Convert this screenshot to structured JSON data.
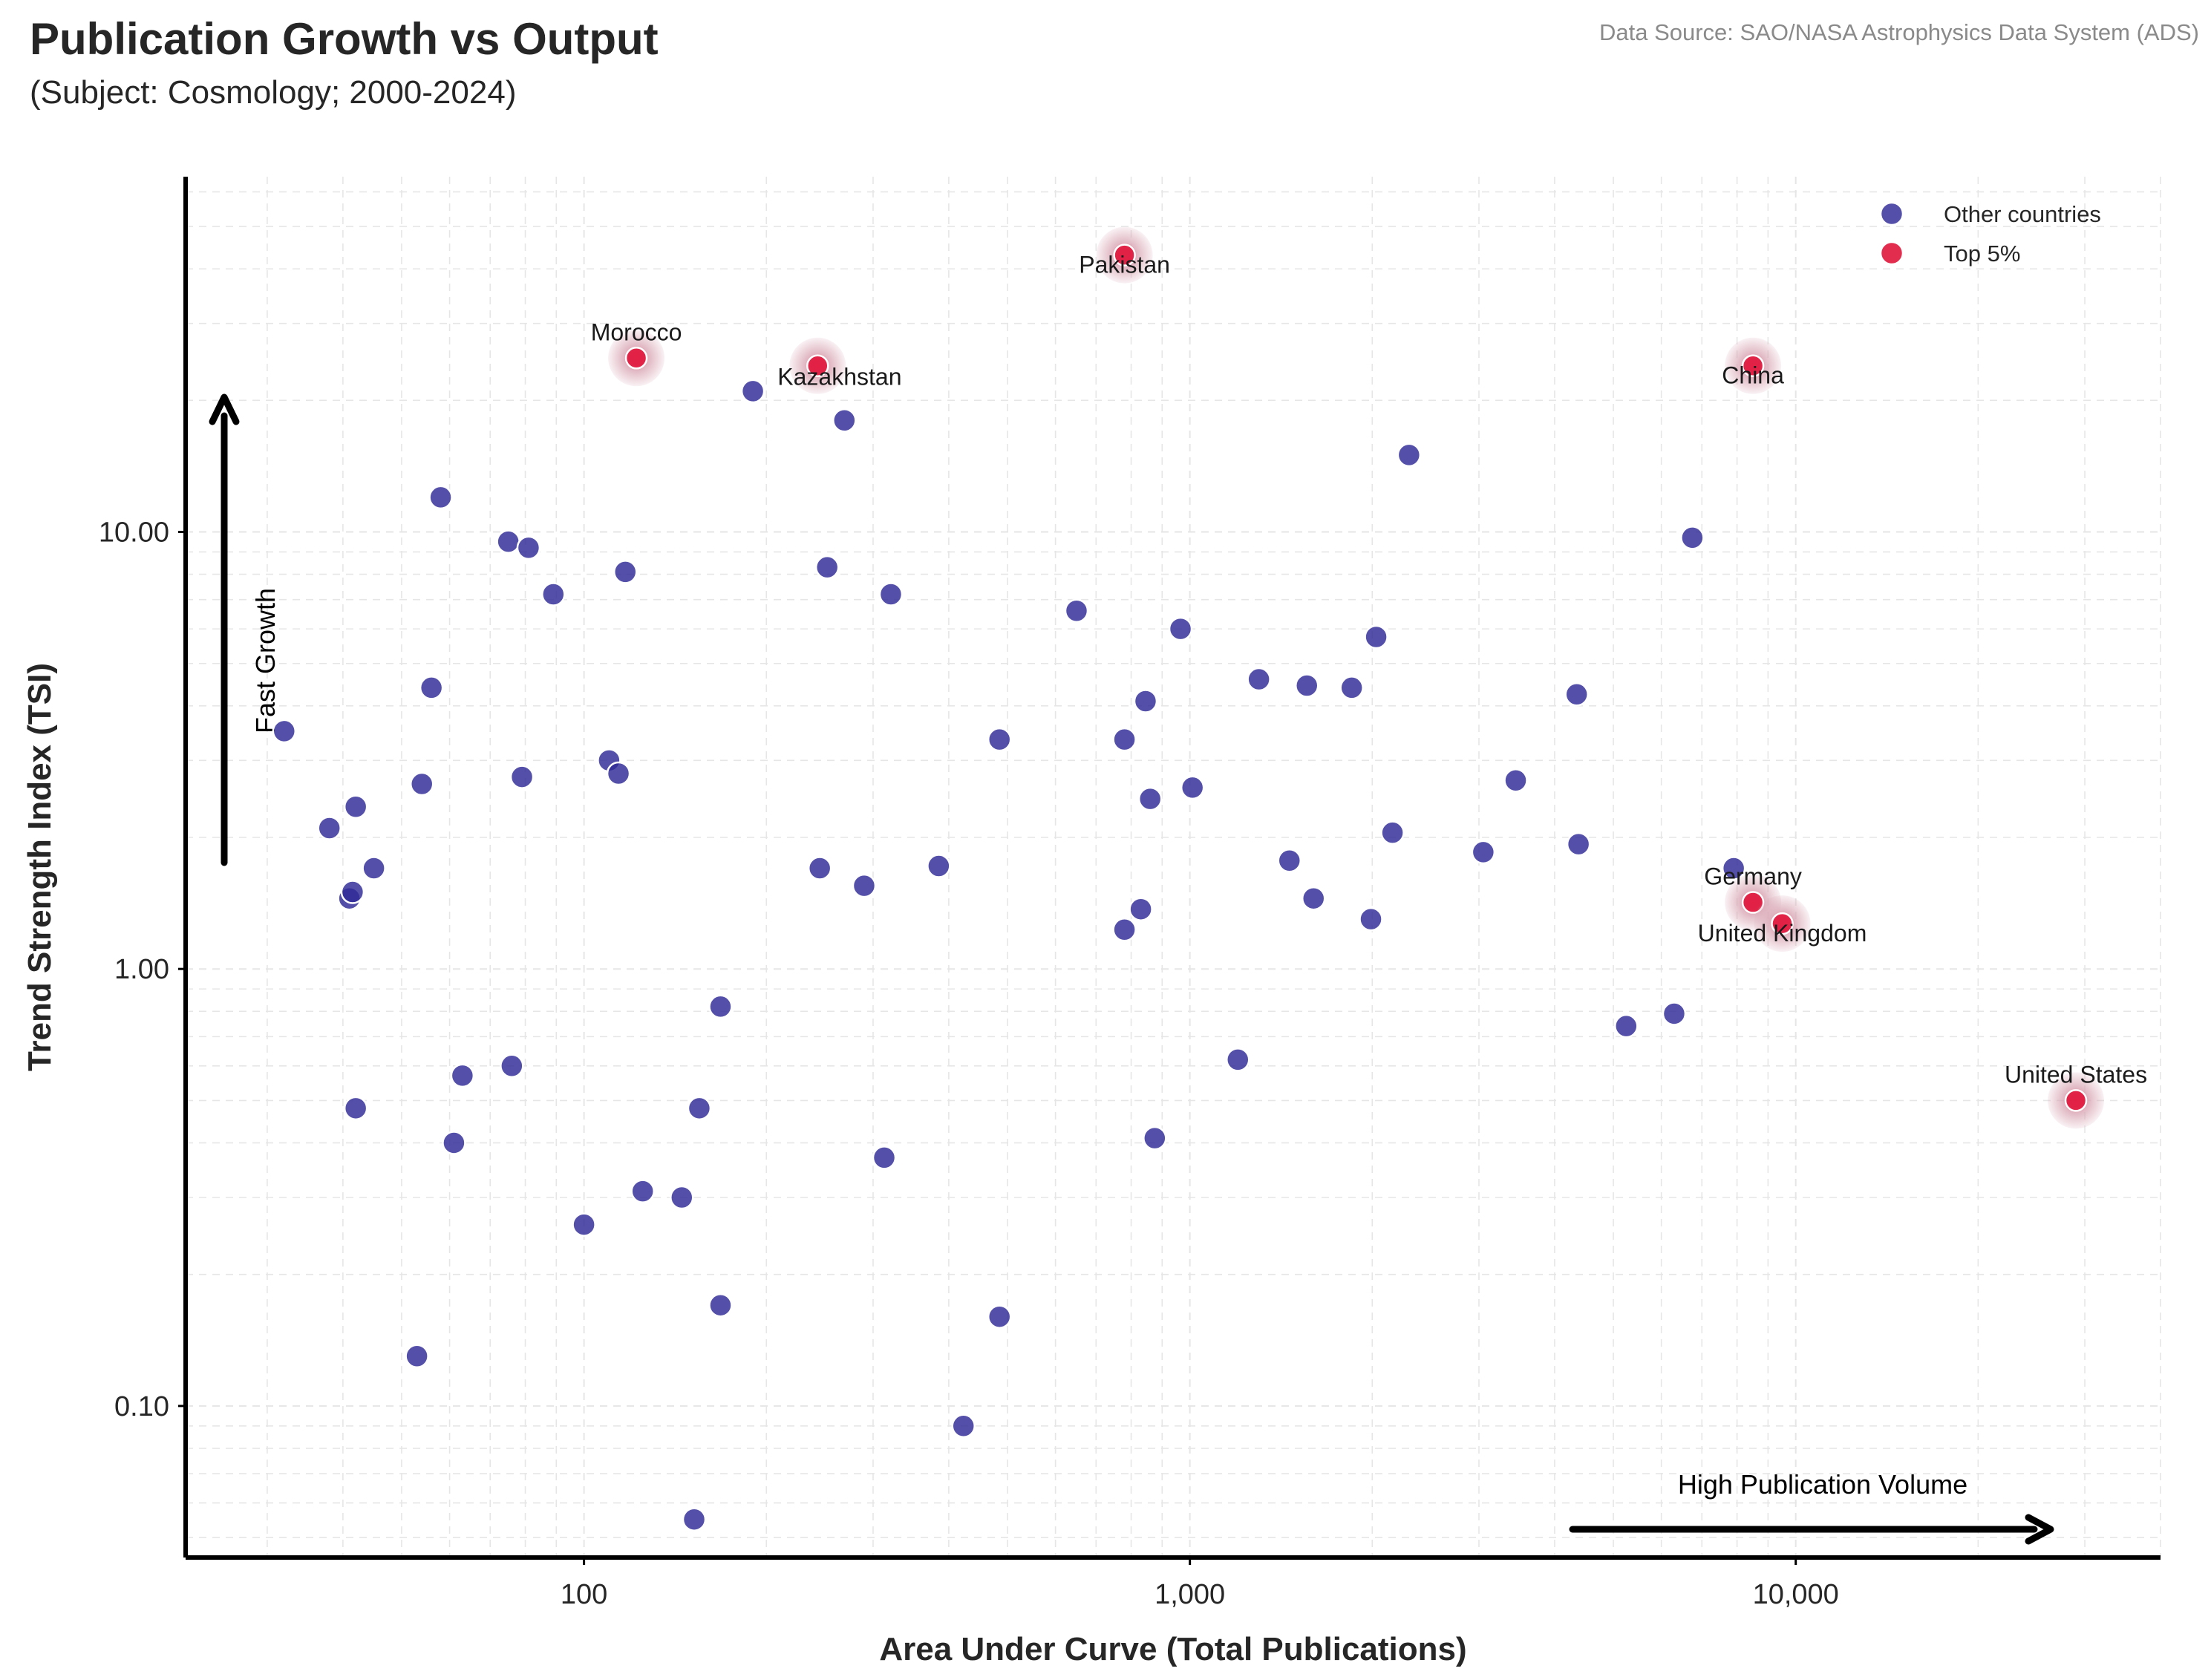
{
  "header": {
    "title": "Publication Growth vs Output",
    "subtitle": "(Subject: Cosmology; 2000-2024)",
    "source": "Data Source: SAO/NASA Astrophysics Data System (ADS)"
  },
  "chart_data": {
    "type": "scatter",
    "xlabel": "Area Under Curve (Total Publications)",
    "ylabel": "Trend Strength Index (TSI)",
    "xscale": "log",
    "yscale": "log",
    "xlim": [
      22,
      40000
    ],
    "ylim": [
      0.045,
      65
    ],
    "x_ticks": [
      100,
      1000,
      10000
    ],
    "x_tick_labels": [
      "100",
      "1,000",
      "10,000"
    ],
    "y_ticks": [
      0.1,
      1,
      10
    ],
    "y_tick_labels": [
      "0.10",
      "1.00",
      "10.00"
    ],
    "grid": true,
    "legend_position": "top-right",
    "colors": {
      "other": "#2e2a96",
      "top": "#e0163c",
      "halo": "#d9a7b5",
      "axis": "#000000"
    },
    "annotations": {
      "fast_growth": "Fast Growth",
      "high_volume": "High Publication Volume"
    },
    "series": [
      {
        "name": "Other countries",
        "color": "#2e2a96",
        "points": [
          [
            32,
            3.5
          ],
          [
            38,
            2.1
          ],
          [
            41,
            1.45
          ],
          [
            41.5,
            1.5
          ],
          [
            42,
            2.35
          ],
          [
            42,
            0.48
          ],
          [
            45,
            1.7
          ],
          [
            53,
            0.13
          ],
          [
            54,
            2.65
          ],
          [
            56,
            4.4
          ],
          [
            58,
            12.0
          ],
          [
            61,
            0.4
          ],
          [
            63,
            0.57
          ],
          [
            75,
            9.5
          ],
          [
            76,
            0.6
          ],
          [
            79,
            2.75
          ],
          [
            81,
            9.2
          ],
          [
            89,
            7.2
          ],
          [
            100,
            0.26
          ],
          [
            110,
            3.0
          ],
          [
            114,
            2.8
          ],
          [
            117,
            8.1
          ],
          [
            125,
            0.31
          ],
          [
            145,
            0.3
          ],
          [
            152,
            0.055
          ],
          [
            155,
            0.48
          ],
          [
            168,
            0.82
          ],
          [
            168,
            0.17
          ],
          [
            190,
            21.0
          ],
          [
            245,
            1.7
          ],
          [
            252,
            8.3
          ],
          [
            269,
            18.0
          ],
          [
            290,
            1.55
          ],
          [
            313,
            0.37
          ],
          [
            321,
            7.2
          ],
          [
            385,
            1.72
          ],
          [
            423,
            0.09
          ],
          [
            485,
            0.16
          ],
          [
            485,
            3.35
          ],
          [
            650,
            6.6
          ],
          [
            780,
            3.35
          ],
          [
            780,
            1.23
          ],
          [
            830,
            1.37
          ],
          [
            845,
            4.1
          ],
          [
            860,
            2.45
          ],
          [
            875,
            0.41
          ],
          [
            965,
            6.0
          ],
          [
            1010,
            2.6
          ],
          [
            1200,
            0.62
          ],
          [
            1300,
            4.6
          ],
          [
            1460,
            1.77
          ],
          [
            1560,
            4.45
          ],
          [
            1600,
            1.45
          ],
          [
            1850,
            4.4
          ],
          [
            1990,
            1.3
          ],
          [
            2030,
            5.75
          ],
          [
            2160,
            2.05
          ],
          [
            2300,
            15.0
          ],
          [
            3050,
            1.85
          ],
          [
            3450,
            2.7
          ],
          [
            4350,
            4.25
          ],
          [
            4380,
            1.93
          ],
          [
            5250,
            0.74
          ],
          [
            6300,
            0.79
          ],
          [
            6750,
            9.7
          ],
          [
            7900,
            1.7
          ]
        ]
      },
      {
        "name": "Top 5%",
        "color": "#e0163c",
        "points": [
          {
            "x": 122,
            "y": 25.0,
            "label": "Morocco",
            "label_pos": "above"
          },
          {
            "x": 243,
            "y": 24.0,
            "label": "Kazakhstan",
            "label_pos": "below-right"
          },
          {
            "x": 780,
            "y": 43.0,
            "label": "Pakistan",
            "label_pos": "below"
          },
          {
            "x": 8500,
            "y": 24.0,
            "label": "China",
            "label_pos": "below"
          },
          {
            "x": 8500,
            "y": 1.42,
            "label": "Germany",
            "label_pos": "above"
          },
          {
            "x": 9500,
            "y": 1.27,
            "label": "United Kingdom",
            "label_pos": "below"
          },
          {
            "x": 29000,
            "y": 0.5,
            "label": "United States",
            "label_pos": "above"
          }
        ]
      }
    ]
  }
}
